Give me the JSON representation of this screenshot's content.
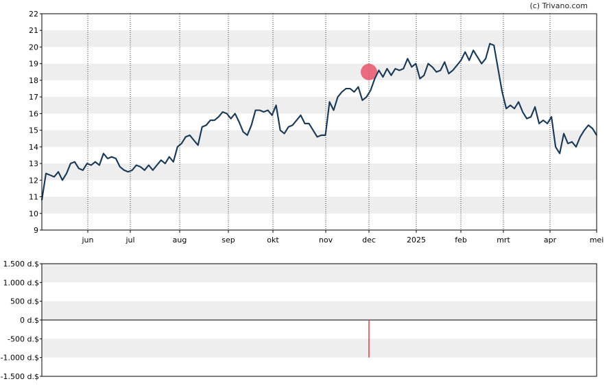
{
  "credit": "(c) Trivano.com",
  "colors": {
    "line": "#1b3a57",
    "band": "#eeeeee",
    "marker": "#e8556a",
    "bar": "#e03c3c",
    "axis": "#000000"
  },
  "chart_data": [
    {
      "type": "line",
      "grid": true,
      "ylim": [
        9,
        22
      ],
      "yticks": [
        "9",
        "10",
        "11",
        "12",
        "13",
        "14",
        "15",
        "16",
        "17",
        "18",
        "19",
        "20",
        "21",
        "22"
      ],
      "xticks": [
        "jun",
        "jul",
        "aug",
        "sep",
        "okt",
        "nov",
        "dec",
        "2025",
        "feb",
        "mrt",
        "apr",
        "mei"
      ],
      "marker": {
        "x": "dec",
        "y": 18.5
      },
      "series": [
        {
          "values": [
            10.8,
            12.4,
            12.3,
            12.2,
            12.5,
            12.0,
            12.4,
            13.0,
            13.1,
            12.7,
            12.6,
            13.0,
            12.9,
            13.1,
            12.9,
            13.6,
            13.3,
            13.4,
            13.3,
            12.8,
            12.6,
            12.5,
            12.6,
            12.9,
            12.8,
            12.6,
            12.9,
            12.6,
            12.9,
            13.2,
            13.0,
            13.4,
            13.1,
            14.0,
            14.2,
            14.6,
            14.7,
            14.4,
            14.1,
            15.2,
            15.3,
            15.6,
            15.6,
            15.8,
            16.1,
            16.0,
            15.7,
            16.0,
            15.5,
            14.9,
            14.7,
            15.3,
            16.2,
            16.2,
            16.1,
            16.2,
            15.9,
            16.5,
            15.0,
            14.8,
            15.2,
            15.3,
            15.6,
            15.9,
            15.4,
            15.4,
            15.0,
            14.6,
            14.7,
            14.7,
            16.7,
            16.2,
            17.0,
            17.3,
            17.5,
            17.5,
            17.3,
            17.6,
            16.8,
            17.0,
            17.4,
            18.1,
            18.6,
            18.2,
            18.7,
            18.3,
            18.7,
            18.6,
            18.7,
            19.3,
            18.8,
            19.0,
            18.1,
            18.3,
            19.0,
            18.8,
            18.5,
            18.6,
            19.1,
            18.4,
            18.6,
            18.9,
            19.2,
            19.7,
            19.2,
            19.8,
            19.4,
            19.0,
            19.3,
            20.2,
            20.1,
            18.7,
            17.3,
            16.3,
            16.5,
            16.3,
            16.7,
            16.1,
            15.7,
            15.8,
            16.4,
            15.4,
            15.6,
            15.4,
            15.8,
            14.0,
            13.6,
            14.8,
            14.2,
            14.3,
            14.0,
            14.6,
            15.0,
            15.3,
            15.1,
            14.7
          ]
        }
      ]
    },
    {
      "type": "bar",
      "grid": true,
      "ylim": [
        -1500,
        1500
      ],
      "yticks": [
        "1.500 d.$",
        "1.000 d.$",
        "500 d.$",
        "0 d.$",
        "-500 d.$",
        "-1.000 d.$",
        "-1.500 d.$"
      ],
      "bars": [
        {
          "x": "dec",
          "value": -1000
        }
      ]
    }
  ]
}
